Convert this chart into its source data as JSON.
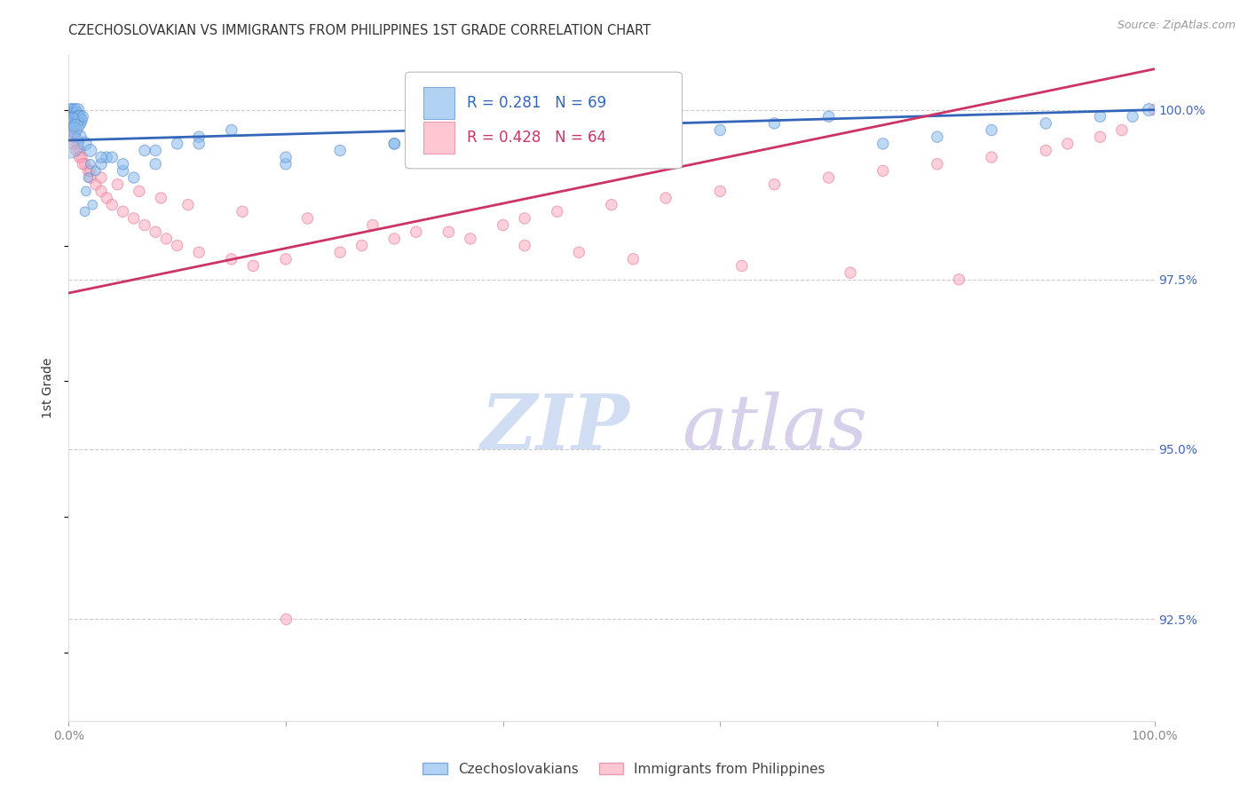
{
  "title": "CZECHOSLOVAKIAN VS IMMIGRANTS FROM PHILIPPINES 1ST GRADE CORRELATION CHART",
  "source": "Source: ZipAtlas.com",
  "ylabel": "1st Grade",
  "ytick_vals": [
    92.5,
    95.0,
    97.5,
    100.0
  ],
  "xlim": [
    0.0,
    100.0
  ],
  "ylim": [
    91.0,
    100.8
  ],
  "blue_R": 0.281,
  "blue_N": 69,
  "pink_R": 0.428,
  "pink_N": 64,
  "blue_color": "#88BBEE",
  "pink_color": "#FFAABB",
  "blue_edge_color": "#5588CC",
  "pink_edge_color": "#DD7799",
  "blue_line_color": "#3366BB",
  "pink_line_color": "#CC3366",
  "tick_color": "#4466BB",
  "grid_color": "#CCCCCC",
  "title_color": "#333333",
  "watermark_zip_color": "#C8D8F0",
  "watermark_atlas_color": "#D0C8E8",
  "legend_label_blue": "Czechoslovakians",
  "legend_label_pink": "Immigrants from Philippines",
  "blue_scatter_x": [
    0.1,
    0.15,
    0.2,
    0.25,
    0.3,
    0.35,
    0.4,
    0.45,
    0.5,
    0.55,
    0.6,
    0.65,
    0.7,
    0.75,
    0.8,
    0.85,
    0.9,
    0.95,
    1.0,
    1.1,
    1.2,
    1.3,
    1.5,
    1.6,
    1.8,
    2.0,
    2.2,
    2.5,
    3.0,
    3.5,
    4.0,
    5.0,
    6.0,
    7.0,
    8.0,
    10.0,
    12.0,
    15.0,
    20.0,
    25.0,
    30.0,
    35.0,
    40.0,
    45.0,
    50.0,
    55.0,
    60.0,
    65.0,
    70.0,
    75.0,
    80.0,
    85.0,
    90.0,
    95.0,
    98.0,
    0.3,
    0.5,
    0.7,
    1.0,
    1.5,
    2.0,
    3.0,
    5.0,
    8.0,
    12.0,
    20.0,
    30.0,
    45.0,
    99.5
  ],
  "blue_scatter_y": [
    99.9,
    99.95,
    100.0,
    99.85,
    99.9,
    100.0,
    99.8,
    99.9,
    99.85,
    99.95,
    100.0,
    99.9,
    99.8,
    99.95,
    99.9,
    100.0,
    99.85,
    99.9,
    99.9,
    99.8,
    99.85,
    99.9,
    98.5,
    98.8,
    99.0,
    99.2,
    98.6,
    99.1,
    99.2,
    99.3,
    99.3,
    99.1,
    99.0,
    99.4,
    99.2,
    99.5,
    99.6,
    99.7,
    99.2,
    99.4,
    99.5,
    99.6,
    99.7,
    99.8,
    99.5,
    99.6,
    99.7,
    99.8,
    99.9,
    99.5,
    99.6,
    99.7,
    99.8,
    99.9,
    99.9,
    99.85,
    99.7,
    99.75,
    99.6,
    99.5,
    99.4,
    99.3,
    99.2,
    99.4,
    99.5,
    99.3,
    99.5,
    99.7,
    100.0
  ],
  "blue_scatter_size": [
    100,
    100,
    100,
    100,
    100,
    100,
    100,
    100,
    100,
    100,
    100,
    100,
    100,
    100,
    100,
    100,
    100,
    100,
    100,
    80,
    80,
    80,
    60,
    60,
    60,
    60,
    60,
    60,
    80,
    80,
    80,
    80,
    80,
    80,
    80,
    80,
    80,
    80,
    80,
    80,
    80,
    80,
    80,
    80,
    80,
    80,
    80,
    80,
    80,
    80,
    80,
    80,
    80,
    80,
    80,
    150,
    150,
    150,
    120,
    120,
    100,
    80,
    80,
    80,
    80,
    80,
    80,
    80,
    100
  ],
  "blue_large_x": [
    0.05
  ],
  "blue_large_y": [
    99.5
  ],
  "blue_large_size": [
    500
  ],
  "pink_scatter_x": [
    0.3,
    0.5,
    0.6,
    0.8,
    1.0,
    1.2,
    1.5,
    1.8,
    2.0,
    2.5,
    3.0,
    3.5,
    4.0,
    5.0,
    6.0,
    7.0,
    8.0,
    9.0,
    10.0,
    12.0,
    15.0,
    17.0,
    20.0,
    25.0,
    27.0,
    30.0,
    35.0,
    40.0,
    42.0,
    45.0,
    50.0,
    55.0,
    60.0,
    65.0,
    70.0,
    75.0,
    80.0,
    85.0,
    90.0,
    92.0,
    95.0,
    0.4,
    0.7,
    1.0,
    1.3,
    2.0,
    3.0,
    4.5,
    6.5,
    8.5,
    11.0,
    16.0,
    22.0,
    28.0,
    32.0,
    37.0,
    42.0,
    47.0,
    52.0,
    62.0,
    72.0,
    82.0,
    97.0,
    100.0
  ],
  "pink_scatter_y": [
    99.7,
    99.6,
    99.65,
    99.5,
    99.4,
    99.3,
    99.2,
    99.1,
    99.0,
    98.9,
    98.8,
    98.7,
    98.6,
    98.5,
    98.4,
    98.3,
    98.2,
    98.1,
    98.0,
    97.9,
    97.8,
    97.7,
    97.8,
    97.9,
    98.0,
    98.1,
    98.2,
    98.3,
    98.4,
    98.5,
    98.6,
    98.7,
    98.8,
    98.9,
    99.0,
    99.1,
    99.2,
    99.3,
    99.4,
    99.5,
    99.6,
    99.5,
    99.4,
    99.3,
    99.2,
    99.1,
    99.0,
    98.9,
    98.8,
    98.7,
    98.6,
    98.5,
    98.4,
    98.3,
    98.2,
    98.1,
    98.0,
    97.9,
    97.8,
    97.7,
    97.6,
    97.5,
    99.7,
    100.0
  ],
  "pink_scatter_size": [
    80,
    80,
    80,
    80,
    80,
    80,
    80,
    80,
    80,
    80,
    80,
    80,
    80,
    80,
    80,
    80,
    80,
    80,
    80,
    80,
    80,
    80,
    80,
    80,
    80,
    80,
    80,
    80,
    80,
    80,
    80,
    80,
    80,
    80,
    80,
    80,
    80,
    80,
    80,
    80,
    80,
    80,
    80,
    80,
    80,
    80,
    80,
    80,
    80,
    80,
    80,
    80,
    80,
    80,
    80,
    80,
    80,
    80,
    80,
    80,
    80,
    80,
    80,
    80
  ],
  "pink_outlier_x": [
    20.0
  ],
  "pink_outlier_y": [
    92.5
  ],
  "blue_trendline_x": [
    0,
    100
  ],
  "blue_trendline_y": [
    99.55,
    100.0
  ],
  "pink_trendline_x": [
    0,
    100
  ],
  "pink_trendline_y": [
    97.3,
    100.6
  ]
}
